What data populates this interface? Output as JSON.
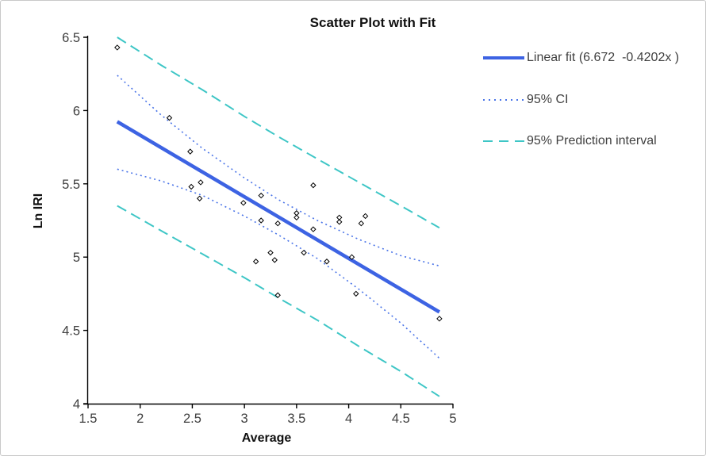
{
  "figure": {
    "title": "Scatter Plot with Fit",
    "x_axis_title": "Average",
    "y_axis_title": "Ln IRI"
  },
  "legend": {
    "items": [
      {
        "label": "Linear fit (6.672  -0.4202x )",
        "style": "solid",
        "color": "#3d63e3"
      },
      {
        "label": "95% CI",
        "style": "dotted",
        "color": "#4a74e8"
      },
      {
        "label": "95% Prediction interval",
        "style": "dashed",
        "color": "#3ec6c6"
      }
    ]
  },
  "colors": {
    "fit_line": "#3d63e3",
    "ci_line": "#4a74e8",
    "pi_line": "#3ec6c6",
    "axis": "#000000",
    "tick_label": "#3f3f3f",
    "marker_stroke": "#000000",
    "marker_fill": "#ffffff"
  },
  "chart_data": {
    "type": "scatter",
    "title": "Scatter Plot with Fit",
    "xlabel": "Average",
    "ylabel": "Ln IRI",
    "xlim": [
      1.5,
      5.0
    ],
    "ylim": [
      4.0,
      6.5
    ],
    "x_ticks": [
      1.5,
      2,
      2.5,
      3,
      3.5,
      4,
      4.5,
      5
    ],
    "y_ticks": [
      4,
      4.5,
      5,
      5.5,
      6,
      6.5
    ],
    "grid": false,
    "legend_position": "right",
    "points": [
      [
        1.78,
        6.43
      ],
      [
        2.28,
        5.95
      ],
      [
        2.48,
        5.72
      ],
      [
        2.58,
        5.51
      ],
      [
        2.49,
        5.48
      ],
      [
        2.57,
        5.4
      ],
      [
        2.99,
        5.37
      ],
      [
        3.16,
        5.42
      ],
      [
        3.16,
        5.25
      ],
      [
        3.32,
        5.23
      ],
      [
        3.66,
        5.49
      ],
      [
        3.5,
        5.3
      ],
      [
        3.5,
        5.27
      ],
      [
        3.66,
        5.19
      ],
      [
        3.25,
        5.03
      ],
      [
        3.57,
        5.03
      ],
      [
        3.11,
        4.97
      ],
      [
        3.29,
        4.98
      ],
      [
        3.79,
        4.97
      ],
      [
        3.32,
        4.74
      ],
      [
        3.91,
        5.27
      ],
      [
        3.91,
        5.24
      ],
      [
        4.16,
        5.28
      ],
      [
        4.12,
        5.23
      ],
      [
        4.03,
        5.0
      ],
      [
        4.07,
        4.75
      ],
      [
        4.87,
        4.58
      ]
    ],
    "fit": {
      "label": "Linear fit (6.672  -0.4202x )",
      "intercept": 6.672,
      "slope": -0.4202,
      "x_range": [
        1.78,
        4.87
      ]
    },
    "bands": {
      "x": [
        1.78,
        2.2,
        2.6,
        3.0,
        3.33,
        3.7,
        4.1,
        4.5,
        4.87
      ],
      "ci_upper": [
        6.24,
        5.97,
        5.74,
        5.54,
        5.39,
        5.25,
        5.12,
        5.01,
        4.94
      ],
      "ci_lower": [
        5.6,
        5.52,
        5.42,
        5.28,
        5.15,
        4.99,
        4.78,
        4.55,
        4.31
      ],
      "pi_upper": [
        6.5,
        6.31,
        6.14,
        5.96,
        5.82,
        5.67,
        5.51,
        5.35,
        5.2
      ],
      "pi_lower": [
        5.35,
        5.18,
        5.02,
        4.86,
        4.72,
        4.57,
        4.39,
        4.22,
        4.05
      ]
    }
  }
}
